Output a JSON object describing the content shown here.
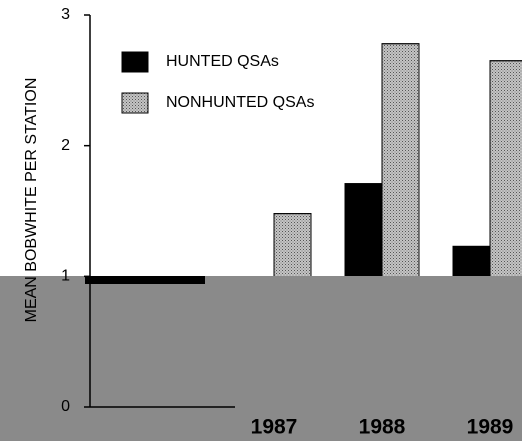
{
  "chart_data": {
    "type": "bar",
    "y_label": "MEAN BOBWHITE PER STATION",
    "categories": [
      "1987",
      "1988",
      "1989"
    ],
    "series": [
      {
        "name": "HUNTED QSAs",
        "color": "#000000",
        "values": [
          null,
          1.71,
          1.23
        ]
      },
      {
        "name": "NONHUNTED QSAs",
        "color": "#c4c4c4",
        "values": [
          1.48,
          2.78,
          2.65
        ]
      }
    ],
    "ylim": [
      0,
      3
    ],
    "yticks": [
      0,
      1,
      2,
      3
    ]
  }
}
